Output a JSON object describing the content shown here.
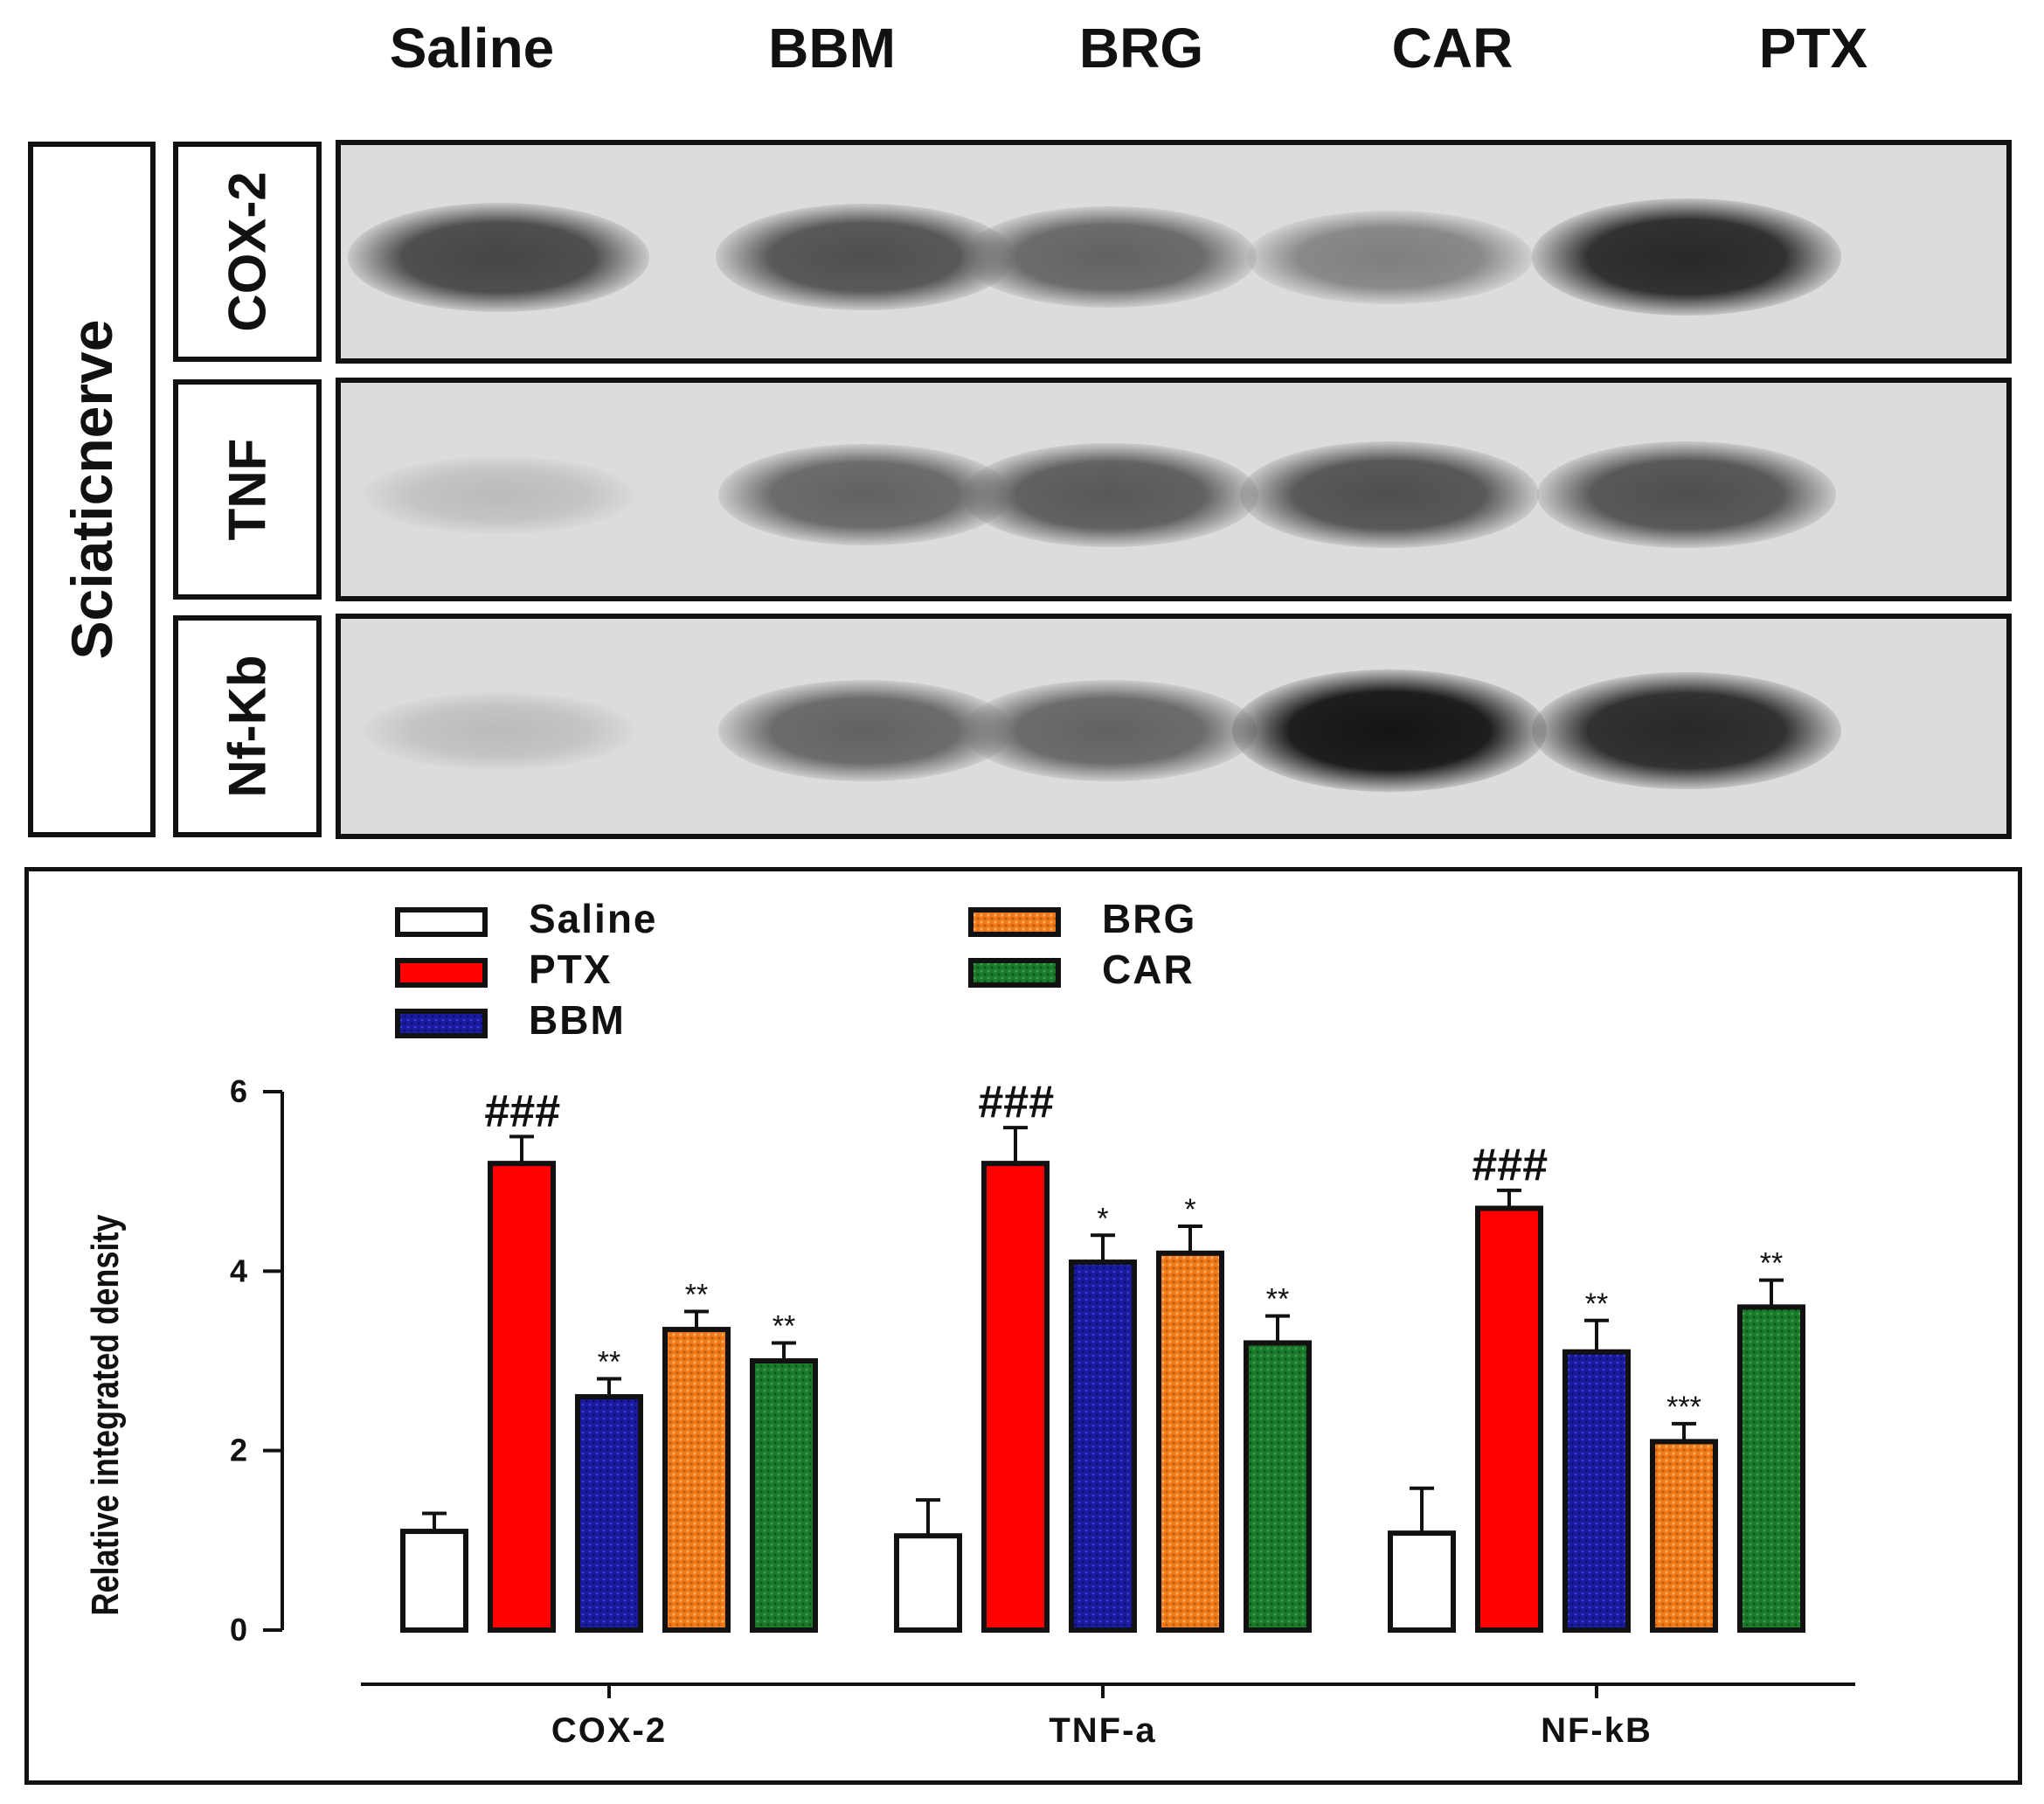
{
  "lanes": [
    "Saline",
    "BBM",
    "BRG",
    "CAR",
    "PTX"
  ],
  "tissue_label": "Sciaticnerve",
  "blot_rows": [
    {
      "label": "COX-2",
      "intensity": [
        0.75,
        0.7,
        0.6,
        0.45,
        0.9
      ]
    },
    {
      "label": "TNF",
      "intensity": [
        0.15,
        0.6,
        0.65,
        0.7,
        0.7
      ]
    },
    {
      "label": "Nf-Kb",
      "intensity": [
        0.15,
        0.6,
        0.6,
        1.0,
        0.9
      ]
    }
  ],
  "chart_data": {
    "type": "bar",
    "xlabel": "",
    "ylabel": "Relative integrated density",
    "ylim": [
      0,
      6
    ],
    "yticks": [
      0,
      2,
      4,
      6
    ],
    "categories": [
      "COX-2",
      "TNF-a",
      "NF-kB"
    ],
    "legend_position": "top-left",
    "series": [
      {
        "name": "Saline",
        "color": "#ffffff",
        "pattern": "none",
        "values": [
          1.1,
          1.05,
          1.08
        ],
        "errors": [
          0.2,
          0.4,
          0.5
        ],
        "marks": [
          "",
          "",
          ""
        ]
      },
      {
        "name": "PTX",
        "color": "#ff0000",
        "pattern": "none",
        "values": [
          5.2,
          5.2,
          4.7
        ],
        "errors": [
          0.3,
          0.4,
          0.2
        ],
        "marks": [
          "###",
          "###",
          "###"
        ]
      },
      {
        "name": "BBM",
        "color": "#1a1a9c",
        "pattern": "dots",
        "values": [
          2.6,
          4.1,
          3.1
        ],
        "errors": [
          0.2,
          0.3,
          0.35
        ],
        "marks": [
          "**",
          "*",
          "**"
        ]
      },
      {
        "name": "BRG",
        "color": "#f07a1a",
        "pattern": "dots",
        "values": [
          3.35,
          4.2,
          2.1
        ],
        "errors": [
          0.2,
          0.3,
          0.2
        ],
        "marks": [
          "**",
          "*",
          "***"
        ]
      },
      {
        "name": "CAR",
        "color": "#1a7a2a",
        "pattern": "dots",
        "values": [
          3.0,
          3.2,
          3.6
        ],
        "errors": [
          0.2,
          0.3,
          0.3
        ],
        "marks": [
          "**",
          "**",
          "**"
        ]
      }
    ]
  }
}
